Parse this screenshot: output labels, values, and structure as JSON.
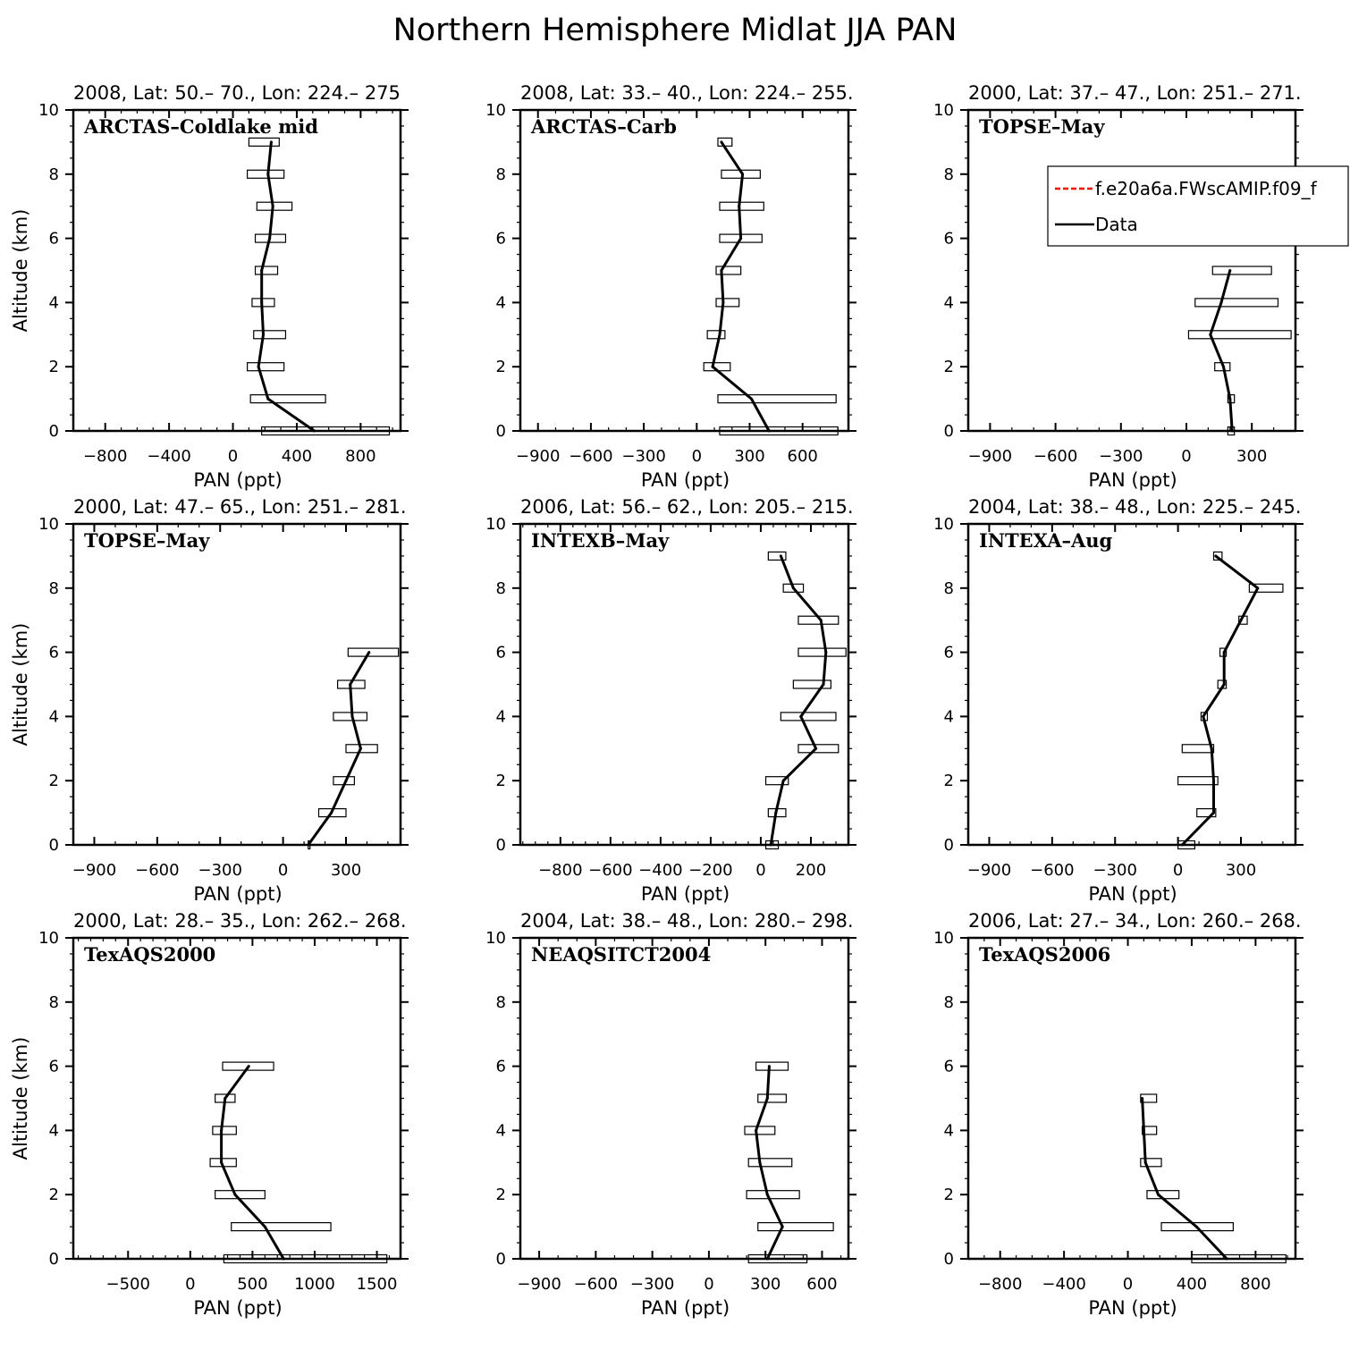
{
  "figure_title": "Northern Hemisphere Midlat JJA PAN",
  "legend": {
    "model_label": "f.e20a6a.FWscAMIP.f09_f",
    "data_label": "Data",
    "model_color": "#ff0000",
    "data_color": "#000000"
  },
  "chart_data": [
    {
      "type": "line",
      "header": "2008, Lat:  50.–  70., Lon: 224.–  275",
      "campaign": "ARCTAS–Coldlake mid",
      "xlabel": "PAN (ppt)",
      "ylabel": "Altitude (km)",
      "xlim": [
        -1000,
        1050
      ],
      "ylim": [
        0,
        10
      ],
      "xticks": [
        -800,
        -400,
        0,
        400,
        800
      ],
      "xtick_labels": [
        "−800",
        "−400",
        "0",
        "400",
        "800"
      ],
      "xminor": 100,
      "yticks": [
        0,
        2,
        4,
        6,
        8,
        10
      ],
      "series": [
        {
          "name": "Data",
          "altitude": [
            0,
            1,
            2,
            3,
            4,
            5,
            6,
            7,
            8,
            9
          ],
          "values": [
            510,
            220,
            160,
            190,
            180,
            180,
            230,
            250,
            220,
            240
          ],
          "error_low": [
            180,
            110,
            90,
            130,
            120,
            140,
            140,
            150,
            90,
            100
          ],
          "error_high": [
            980,
            580,
            320,
            330,
            260,
            280,
            330,
            370,
            320,
            290
          ]
        }
      ]
    },
    {
      "type": "line",
      "header": "2008, Lat:  33.–  40., Lon: 224.–  255.",
      "campaign": "ARCTAS–Carb",
      "xlabel": "PAN (ppt)",
      "ylabel": "",
      "xlim": [
        -1000,
        860
      ],
      "ylim": [
        0,
        10
      ],
      "xticks": [
        -900,
        -600,
        -300,
        0,
        300,
        600
      ],
      "xtick_labels": [
        "−900",
        "−600",
        "−300",
        "0",
        "300",
        "600"
      ],
      "xminor": 100,
      "yticks": [
        0,
        2,
        4,
        6,
        8,
        10
      ],
      "series": [
        {
          "name": "Data",
          "altitude": [
            0,
            1,
            2,
            3,
            4,
            5,
            6,
            7,
            8,
            9
          ],
          "values": [
            410,
            310,
            90,
            130,
            150,
            140,
            250,
            240,
            260,
            140
          ],
          "error_low": [
            130,
            120,
            40,
            60,
            110,
            110,
            130,
            130,
            140,
            120
          ],
          "error_high": [
            800,
            790,
            190,
            160,
            240,
            250,
            370,
            380,
            360,
            200
          ]
        }
      ]
    },
    {
      "type": "line",
      "header": "2000, Lat: 37.–  47., Lon: 251.–  271.",
      "campaign": "TOPSE–May",
      "xlabel": "PAN (ppt)",
      "ylabel": "",
      "xlim": [
        -1000,
        500
      ],
      "ylim": [
        0,
        10
      ],
      "xticks": [
        -900,
        -600,
        -300,
        0,
        300
      ],
      "xtick_labels": [
        "−900",
        "−600",
        "−300",
        "0",
        "300"
      ],
      "xminor": 100,
      "yticks": [
        0,
        2,
        4,
        6,
        8,
        10
      ],
      "series": [
        {
          "name": "Data",
          "altitude": [
            0,
            1,
            2,
            3,
            4,
            5
          ],
          "values": [
            210,
            200,
            170,
            110,
            160,
            200
          ],
          "error_low": [
            190,
            190,
            130,
            10,
            40,
            120
          ],
          "error_high": [
            220,
            220,
            200,
            480,
            420,
            390
          ]
        }
      ]
    },
    {
      "type": "line",
      "header": "2000, Lat: 47.–  65., Lon: 251.–  281.",
      "campaign": "TOPSE–May",
      "xlabel": "PAN (ppt)",
      "ylabel": "Altitude (km)",
      "xlim": [
        -1000,
        560
      ],
      "ylim": [
        0,
        10
      ],
      "xticks": [
        -900,
        -600,
        -300,
        0,
        300
      ],
      "xtick_labels": [
        "−900",
        "−600",
        "−300",
        "0",
        "300"
      ],
      "xminor": 100,
      "yticks": [
        0,
        2,
        4,
        6,
        8,
        10
      ],
      "series": [
        {
          "name": "Data",
          "altitude": [
            0,
            1,
            2,
            3,
            4,
            5,
            6
          ],
          "values": [
            120,
            230,
            300,
            370,
            330,
            320,
            410
          ],
          "error_low": [
            120,
            170,
            240,
            300,
            240,
            260,
            310
          ],
          "error_high": [
            120,
            300,
            340,
            450,
            400,
            390,
            550
          ]
        }
      ]
    },
    {
      "type": "line",
      "header": "2006, Lat: 56.–  62., Lon: 205.–  215.",
      "campaign": "INTEXB–May",
      "xlabel": "PAN (ppt)",
      "ylabel": "",
      "xlim": [
        -960,
        350
      ],
      "ylim": [
        0,
        10
      ],
      "xticks": [
        -800,
        -600,
        -400,
        -200,
        0,
        200
      ],
      "xtick_labels": [
        "−800",
        "−600",
        "−400",
        "−200",
        "0",
        "200"
      ],
      "xminor": 50,
      "yticks": [
        0,
        2,
        4,
        6,
        8,
        10
      ],
      "series": [
        {
          "name": "Data",
          "altitude": [
            0,
            1,
            2,
            3,
            4,
            5,
            6,
            7,
            8,
            9
          ],
          "values": [
            40,
            60,
            90,
            220,
            160,
            250,
            260,
            240,
            130,
            80
          ],
          "error_low": [
            20,
            30,
            20,
            150,
            80,
            130,
            150,
            150,
            90,
            30
          ],
          "error_high": [
            70,
            100,
            110,
            310,
            300,
            280,
            340,
            310,
            170,
            100
          ]
        }
      ]
    },
    {
      "type": "line",
      "header": "2004, Lat: 38.–  48., Lon: 225.–  245.",
      "campaign": "INTEXA–Aug",
      "xlabel": "PAN (ppt)",
      "ylabel": "",
      "xlim": [
        -1000,
        560
      ],
      "ylim": [
        0,
        10
      ],
      "xticks": [
        -900,
        -600,
        -300,
        0,
        300
      ],
      "xtick_labels": [
        "−900",
        "−600",
        "−300",
        "0",
        "300"
      ],
      "xminor": 100,
      "yticks": [
        0,
        2,
        4,
        6,
        8,
        10
      ],
      "series": [
        {
          "name": "Data",
          "altitude": [
            0,
            1,
            2,
            3,
            4,
            5,
            6,
            7,
            8,
            9
          ],
          "values": [
            20,
            170,
            170,
            160,
            120,
            220,
            220,
            300,
            380,
            180
          ],
          "error_low": [
            0,
            90,
            0,
            20,
            110,
            190,
            200,
            290,
            340,
            170
          ],
          "error_high": [
            80,
            180,
            190,
            170,
            140,
            230,
            230,
            330,
            500,
            210
          ]
        }
      ]
    },
    {
      "type": "line",
      "header": "2000, Lat: 28.–  35., Lon: 262.–  268.",
      "campaign": "TexAQS2000",
      "xlabel": "PAN (ppt)",
      "ylabel": "Altitude (km)",
      "xlim": [
        -940,
        1690
      ],
      "ylim": [
        0,
        10
      ],
      "xticks": [
        -500,
        0,
        500,
        1000,
        1500
      ],
      "xtick_labels": [
        "−500",
        "0",
        "500",
        "1000",
        "1500"
      ],
      "xminor": 100,
      "yticks": [
        0,
        2,
        4,
        6,
        8,
        10
      ],
      "series": [
        {
          "name": "Data",
          "altitude": [
            0,
            1,
            2,
            3,
            4,
            5,
            6
          ],
          "values": [
            750,
            600,
            360,
            250,
            250,
            280,
            470
          ],
          "error_low": [
            270,
            330,
            200,
            160,
            180,
            200,
            260
          ],
          "error_high": [
            1580,
            1130,
            600,
            370,
            370,
            360,
            670
          ]
        }
      ]
    },
    {
      "type": "line",
      "header": "2004, Lat: 38.–  48., Lon: 280.–  298.",
      "campaign": "NEAQSITCT2004",
      "xlabel": "PAN (ppt)",
      "ylabel": "",
      "xlim": [
        -1000,
        740
      ],
      "ylim": [
        0,
        10
      ],
      "xticks": [
        -900,
        -600,
        -300,
        0,
        300,
        600
      ],
      "xtick_labels": [
        "−900",
        "−600",
        "−300",
        "0",
        "300",
        "600"
      ],
      "xminor": 100,
      "yticks": [
        0,
        2,
        4,
        6,
        8,
        10
      ],
      "series": [
        {
          "name": "Data",
          "altitude": [
            0,
            1,
            2,
            3,
            4,
            5,
            6
          ],
          "values": [
            310,
            390,
            310,
            270,
            250,
            310,
            320
          ],
          "error_low": [
            210,
            260,
            200,
            210,
            190,
            260,
            250
          ],
          "error_high": [
            520,
            660,
            480,
            440,
            350,
            410,
            420
          ]
        }
      ]
    },
    {
      "type": "line",
      "header": "2006, Lat: 27.–  34., Lon: 260.–  268.",
      "campaign": "TexAQS2006",
      "xlabel": "PAN (ppt)",
      "ylabel": "",
      "xlim": [
        -1000,
        1050
      ],
      "ylim": [
        0,
        10
      ],
      "xticks": [
        -800,
        -400,
        0,
        400,
        800
      ],
      "xtick_labels": [
        "−800",
        "−400",
        "0",
        "400",
        "800"
      ],
      "xminor": 100,
      "yticks": [
        0,
        2,
        4,
        6,
        8,
        10
      ],
      "series": [
        {
          "name": "Data",
          "altitude": [
            0,
            1,
            2,
            3,
            4,
            5
          ],
          "values": [
            620,
            430,
            190,
            110,
            100,
            90
          ],
          "error_low": [
            400,
            210,
            120,
            80,
            90,
            80
          ],
          "error_high": [
            990,
            660,
            320,
            210,
            180,
            180
          ]
        }
      ]
    }
  ]
}
